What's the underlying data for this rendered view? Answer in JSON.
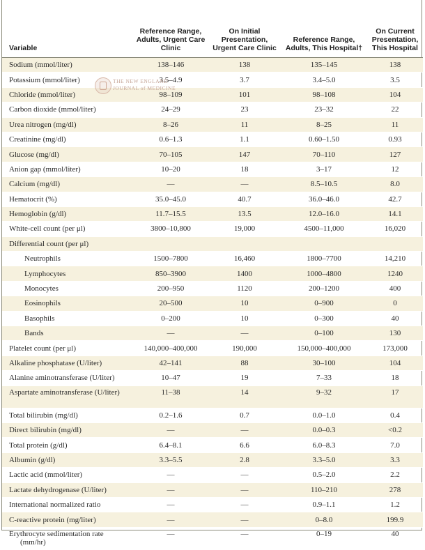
{
  "headers": {
    "variable": "Variable",
    "ref_clinic": "Reference Range, Adults, Urgent Care Clinic",
    "initial": "On Initial Presentation, Urgent Care Clinic",
    "ref_hospital": "Reference Range, Adults, This Hospital†",
    "current": "On Current Presentation, This Hospital"
  },
  "watermark": {
    "line1": "THE NEW ENGLAND",
    "line2": "JOURNAL of MEDICINE"
  },
  "rows": [
    {
      "name": "Sodium (mmol/liter)",
      "ref_clinic": "138–146",
      "initial": "138",
      "ref_hospital": "135–145",
      "current": "138"
    },
    {
      "name": "Potassium (mmol/liter)",
      "ref_clinic": "3.5–4.9",
      "initial": "3.7",
      "ref_hospital": "3.4–5.0",
      "current": "3.5"
    },
    {
      "name": "Chloride (mmol/liter)",
      "ref_clinic": "98–109",
      "initial": "101",
      "ref_hospital": "98–108",
      "current": "104"
    },
    {
      "name": "Carbon dioxide (mmol/liter)",
      "ref_clinic": "24–29",
      "initial": "23",
      "ref_hospital": "23–32",
      "current": "22"
    },
    {
      "name": "Urea nitrogen (mg/dl)",
      "ref_clinic": "8–26",
      "initial": "11",
      "ref_hospital": "8–25",
      "current": "11"
    },
    {
      "name": "Creatinine (mg/dl)",
      "ref_clinic": "0.6–1.3",
      "initial": "1.1",
      "ref_hospital": "0.60–1.50",
      "current": "0.93"
    },
    {
      "name": "Glucose (mg/dl)",
      "ref_clinic": "70–105",
      "initial": "147",
      "ref_hospital": "70–110",
      "current": "127"
    },
    {
      "name": "Anion gap (mmol/liter)",
      "ref_clinic": "10–20",
      "initial": "18",
      "ref_hospital": "3–17",
      "current": "12"
    },
    {
      "name": "Calcium (mg/dl)",
      "ref_clinic": "—",
      "initial": "—",
      "ref_hospital": "8.5–10.5",
      "current": "8.0"
    },
    {
      "name": "Hematocrit (%)",
      "ref_clinic": "35.0–45.0",
      "initial": "40.7",
      "ref_hospital": "36.0–46.0",
      "current": "42.7"
    },
    {
      "name": "Hemoglobin (g/dl)",
      "ref_clinic": "11.7–15.5",
      "initial": "13.5",
      "ref_hospital": "12.0–16.0",
      "current": "14.1"
    },
    {
      "name": "White-cell count (per μl)",
      "ref_clinic": "3800–10,800",
      "initial": "19,000",
      "ref_hospital": "4500–11,000",
      "current": "16,020"
    },
    {
      "name": "Differential count (per μl)",
      "ref_clinic": "",
      "initial": "",
      "ref_hospital": "",
      "current": ""
    },
    {
      "name": "Neutrophils",
      "ref_clinic": "1500–7800",
      "initial": "16,460",
      "ref_hospital": "1800–7700",
      "current": "14,210"
    },
    {
      "name": "Lymphocytes",
      "ref_clinic": "850–3900",
      "initial": "1400",
      "ref_hospital": "1000–4800",
      "current": "1240"
    },
    {
      "name": "Monocytes",
      "ref_clinic": "200–950",
      "initial": "1120",
      "ref_hospital": "200–1200",
      "current": "400"
    },
    {
      "name": "Eosinophils",
      "ref_clinic": "20–500",
      "initial": "10",
      "ref_hospital": "0–900",
      "current": "0"
    },
    {
      "name": "Basophils",
      "ref_clinic": "0–200",
      "initial": "10",
      "ref_hospital": "0–300",
      "current": "40"
    },
    {
      "name": "Bands",
      "ref_clinic": "—",
      "initial": "—",
      "ref_hospital": "0–100",
      "current": "130"
    },
    {
      "name": "Platelet count (per μl)",
      "ref_clinic": "140,000–400,000",
      "initial": "190,000",
      "ref_hospital": "150,000–400,000",
      "current": "173,000"
    },
    {
      "name": "Alkaline phosphatase (U/liter)",
      "ref_clinic": "42–141",
      "initial": "88",
      "ref_hospital": "30–100",
      "current": "104"
    },
    {
      "name": "Alanine aminotransferase (U/liter)",
      "ref_clinic": "10–47",
      "initial": "19",
      "ref_hospital": "7–33",
      "current": "18"
    },
    {
      "name": "Aspartate aminotransferase (U/liter)",
      "ref_clinic": "11–38",
      "initial": "14",
      "ref_hospital": "9–32",
      "current": "17"
    },
    {
      "name": "Total bilirubin (mg/dl)",
      "ref_clinic": "0.2–1.6",
      "initial": "0.7",
      "ref_hospital": "0.0–1.0",
      "current": "0.4"
    },
    {
      "name": "Direct bilirubin (mg/dl)",
      "ref_clinic": "—",
      "initial": "—",
      "ref_hospital": "0.0–0.3",
      "current": "<0.2"
    },
    {
      "name": "Total protein (g/dl)",
      "ref_clinic": "6.4–8.1",
      "initial": "6.6",
      "ref_hospital": "6.0–8.3",
      "current": "7.0"
    },
    {
      "name": "Albumin (g/dl)",
      "ref_clinic": "3.3–5.5",
      "initial": "2.8",
      "ref_hospital": "3.3–5.0",
      "current": "3.3"
    },
    {
      "name": "Lactic acid (mmol/liter)",
      "ref_clinic": "—",
      "initial": "—",
      "ref_hospital": "0.5–2.0",
      "current": "2.2"
    },
    {
      "name": "Lactate dehydrogenase (U/liter)",
      "ref_clinic": "—",
      "initial": "—",
      "ref_hospital": "110–210",
      "current": "278"
    },
    {
      "name": "International normalized ratio",
      "ref_clinic": "—",
      "initial": "—",
      "ref_hospital": "0.9–1.1",
      "current": "1.2"
    },
    {
      "name": "C-reactive protein (mg/liter)",
      "ref_clinic": "—",
      "initial": "—",
      "ref_hospital": "0–8.0",
      "current": "199.9"
    },
    {
      "name": "Erythrocyte sedimentation rate (mm/hr)",
      "ref_clinic": "—",
      "initial": "—",
      "ref_hospital": "0–19",
      "current": "40"
    }
  ]
}
